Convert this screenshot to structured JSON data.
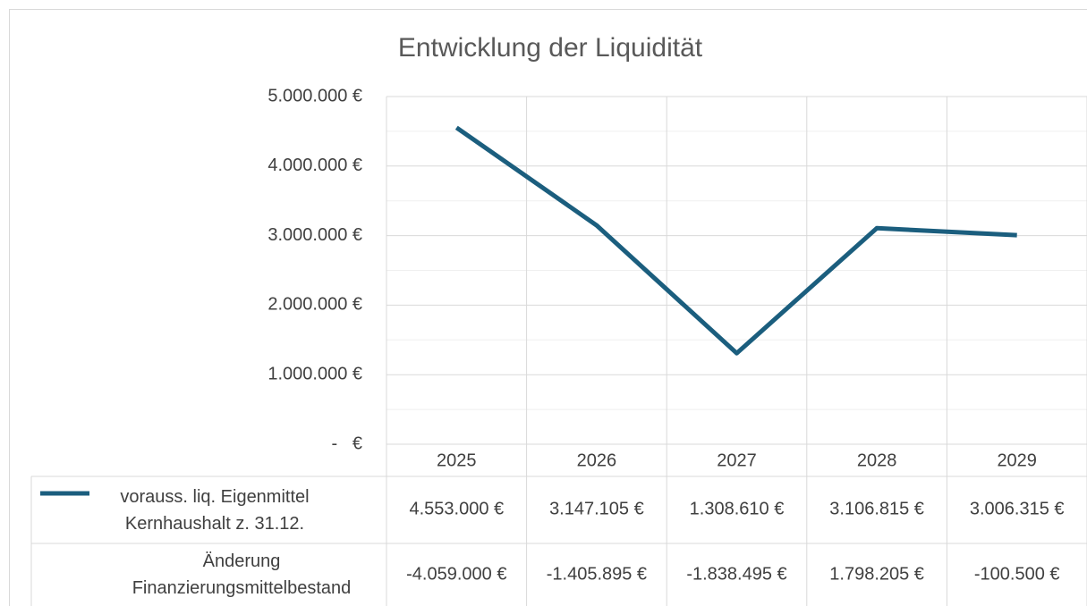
{
  "chart_data": {
    "type": "line",
    "title": "Entwicklung der Liquidität",
    "categories": [
      "2025",
      "2026",
      "2027",
      "2028",
      "2029"
    ],
    "series": [
      {
        "name": "vorauss. liq. Eigenmittel Kernhaushalt z. 31.12.",
        "color": "#1b5e7e",
        "values": [
          4553000,
          3147105,
          1308610,
          3106815,
          3006315
        ],
        "value_labels": [
          "4.553.000 €",
          "3.147.105 €",
          "1.308.610 €",
          "3.106.815 €",
          "3.006.315 €"
        ]
      }
    ],
    "table_rows": [
      {
        "name": "Änderung Finanzierungsmittelbestand",
        "values": [
          -4059000,
          -1405895,
          -1838495,
          1798205,
          -100500
        ],
        "value_labels": [
          "-4.059.000 €",
          "-1.405.895 €",
          "-1.838.495 €",
          "1.798.205 €",
          "-100.500 €"
        ]
      }
    ],
    "ylim": [
      0,
      5000000
    ],
    "yticks": [
      {
        "value": 0,
        "label": "-   €"
      },
      {
        "value": 1000000,
        "label": "1.000.000 €"
      },
      {
        "value": 2000000,
        "label": "2.000.000 €"
      },
      {
        "value": 3000000,
        "label": "3.000.000 €"
      },
      {
        "value": 4000000,
        "label": "4.000.000 €"
      },
      {
        "value": 5000000,
        "label": "5.000.000 €"
      }
    ],
    "minor_yticks": [
      500000,
      1500000,
      2500000,
      3500000,
      4500000
    ],
    "grid": true
  }
}
